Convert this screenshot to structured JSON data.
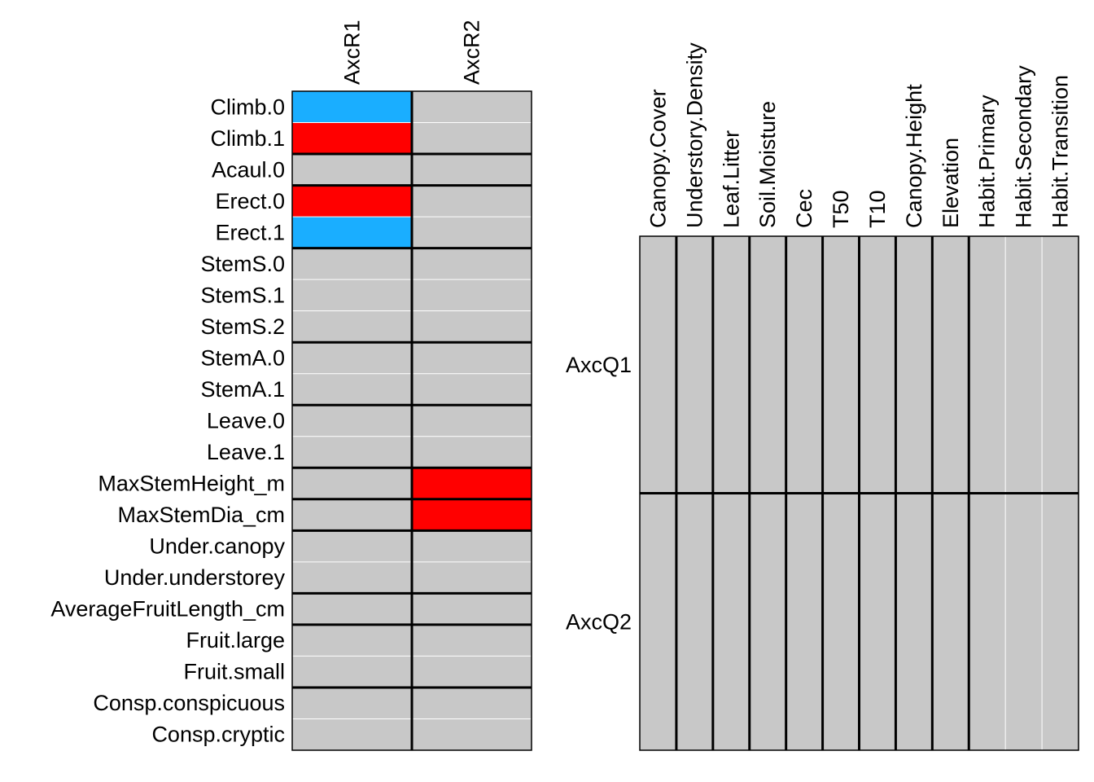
{
  "chart_data": [
    {
      "type": "heatmap",
      "title": "",
      "xlabel": "",
      "ylabel": "",
      "x": [
        "AxcR1",
        "AxcR2"
      ],
      "y": [
        "Climb.0",
        "Climb.1",
        "Acaul.0",
        "Erect.0",
        "Erect.1",
        "StemS.0",
        "StemS.1",
        "StemS.2",
        "StemA.0",
        "StemA.1",
        "Leave.0",
        "Leave.1",
        "MaxStemHeight_m",
        "MaxStemDia_cm",
        "Under.canopy",
        "Under.understorey",
        "AverageFruitLength_cm",
        "Fruit.large",
        "Fruit.small",
        "Consp.conspicuous",
        "Consp.cryptic"
      ],
      "values": [
        [
          -1,
          0
        ],
        [
          1,
          0
        ],
        [
          0,
          0
        ],
        [
          1,
          0
        ],
        [
          -1,
          0
        ],
        [
          0,
          0
        ],
        [
          0,
          0
        ],
        [
          0,
          0
        ],
        [
          0,
          0
        ],
        [
          0,
          0
        ],
        [
          0,
          0
        ],
        [
          0,
          0
        ],
        [
          0,
          1
        ],
        [
          0,
          1
        ],
        [
          0,
          0
        ],
        [
          0,
          0
        ],
        [
          0,
          0
        ],
        [
          0,
          0
        ],
        [
          0,
          0
        ],
        [
          0,
          0
        ],
        [
          0,
          0
        ]
      ],
      "row_groups": [
        [
          0,
          1
        ],
        [
          2
        ],
        [
          3,
          4
        ],
        [
          5,
          6,
          7
        ],
        [
          8,
          9
        ],
        [
          10,
          11
        ],
        [
          12
        ],
        [
          13
        ],
        [
          14,
          15
        ],
        [
          16
        ],
        [
          17,
          18
        ],
        [
          19,
          20
        ]
      ],
      "col_groups": [
        [
          0
        ],
        [
          1
        ]
      ],
      "legend": {
        "-1": {
          "color": "#1AAEFF"
        },
        "0": {
          "color": "#C8C8C8"
        },
        "1": {
          "color": "#FF0000"
        }
      }
    },
    {
      "type": "heatmap",
      "title": "",
      "xlabel": "",
      "ylabel": "",
      "x": [
        "Canopy.Cover",
        "Understory.Density",
        "Leaf.Litter",
        "Soil.Moisture",
        "Cec",
        "T50",
        "T10",
        "Canopy.Height",
        "Elevation",
        "Habit.Primary",
        "Habit.Secondary",
        "Habit.Transition"
      ],
      "y": [
        "AxcQ1",
        "AxcQ2"
      ],
      "values": [
        [
          0,
          0,
          0,
          0,
          0,
          0,
          0,
          0,
          0,
          0,
          0,
          0
        ],
        [
          0,
          0,
          0,
          0,
          0,
          0,
          0,
          0,
          0,
          0,
          0,
          0
        ]
      ],
      "row_groups": [
        [
          0
        ],
        [
          1
        ]
      ],
      "col_groups": [
        [
          0
        ],
        [
          1
        ],
        [
          2
        ],
        [
          3
        ],
        [
          4
        ],
        [
          5
        ],
        [
          6
        ],
        [
          7
        ],
        [
          8
        ],
        [
          9,
          10,
          11
        ]
      ],
      "legend": {
        "0": {
          "color": "#C8C8C8"
        }
      }
    }
  ]
}
